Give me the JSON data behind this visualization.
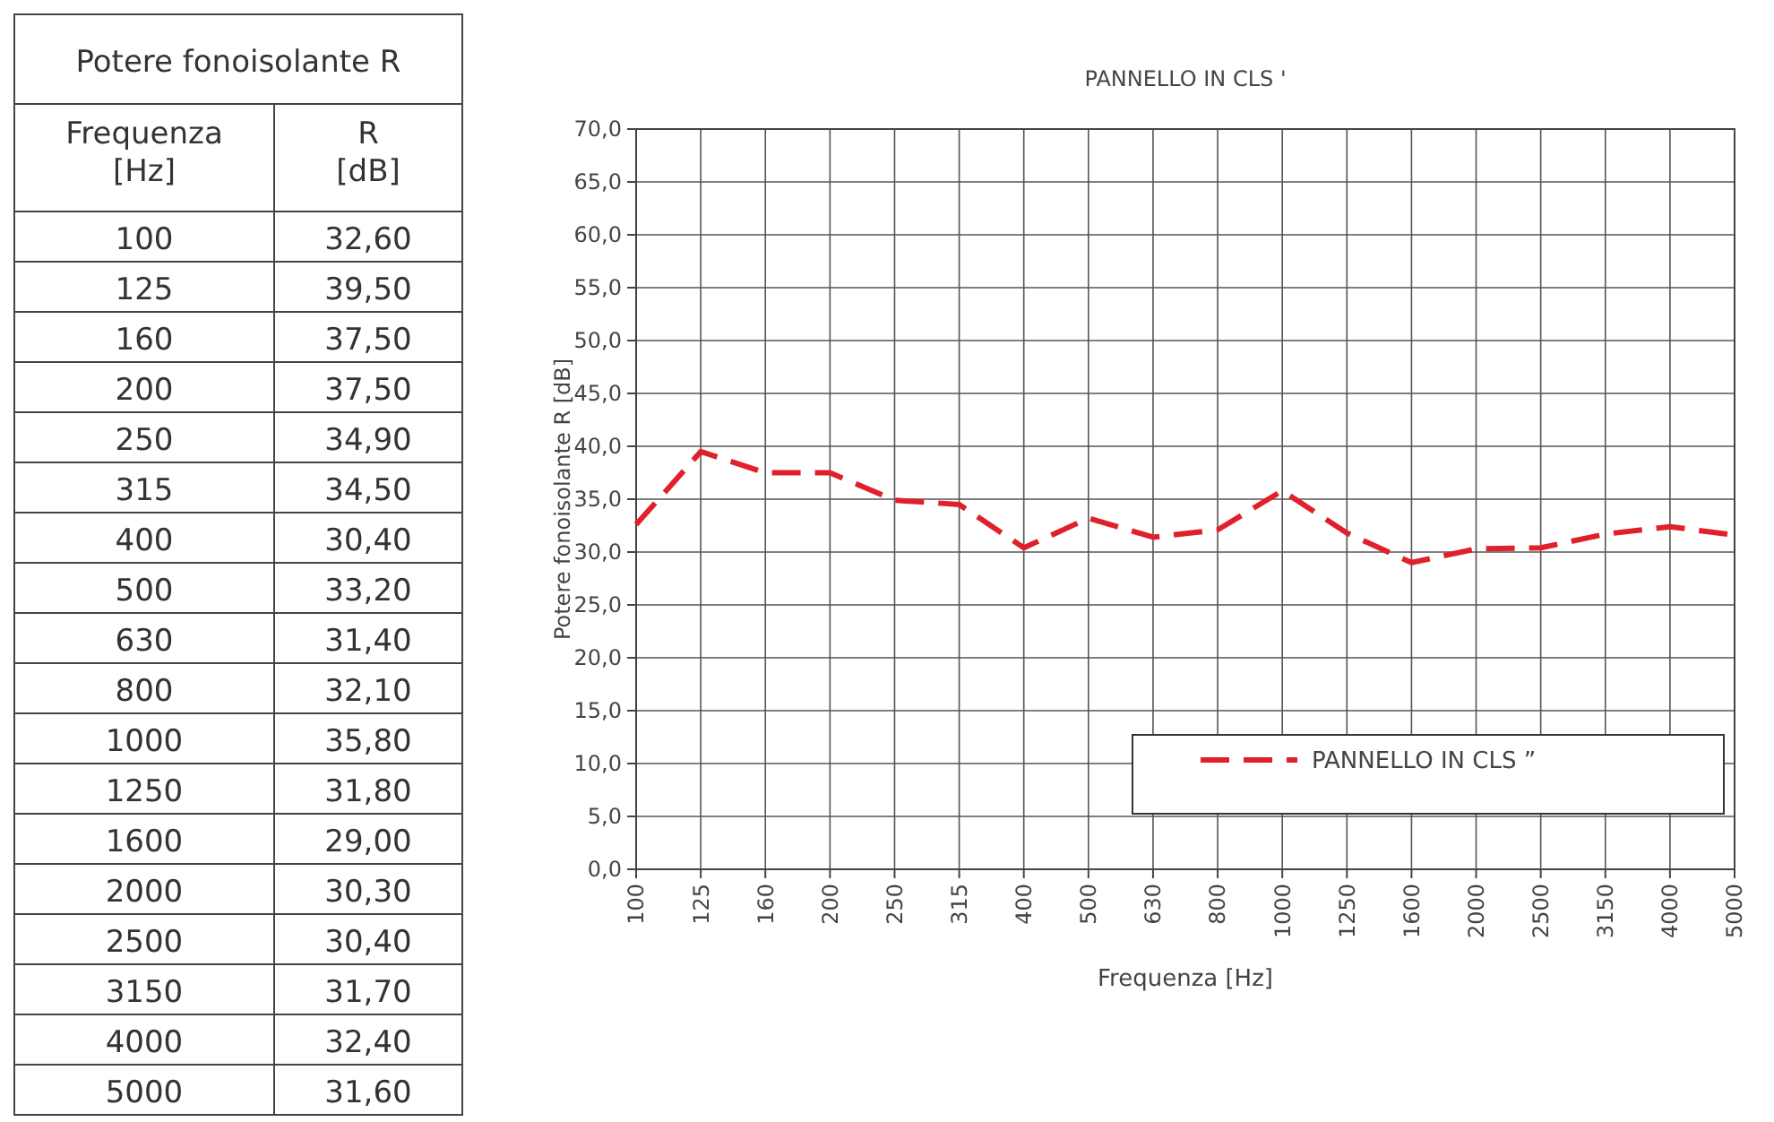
{
  "chart_data": [
    {
      "type": "other",
      "title": "Potere fonoisolante R",
      "annotations": [
        "Frequenza [Hz]",
        "R [dB]",
        "100",
        "32,60",
        "125",
        "39,50",
        "160",
        "37,50",
        "200",
        "37,50",
        "250",
        "34,90",
        "315",
        "34,50",
        "400",
        "30,40",
        "500",
        "33,20",
        "630",
        "31,40",
        "800",
        "32,10",
        "1000",
        "35,80",
        "1250",
        "31,80",
        "1600",
        "29,00",
        "2000",
        "30,30",
        "2500",
        "30,40",
        "3150",
        "31,70",
        "4000",
        "32,40",
        "5000",
        "31,60"
      ]
    },
    {
      "type": "line",
      "title": "PANNELLO IN CLS '",
      "xlabel": "Frequenza [Hz]",
      "ylabel": "Potere fonoisolante R [dB]",
      "categories": [
        "100",
        "125",
        "160",
        "200",
        "250",
        "315",
        "400",
        "500",
        "630",
        "800",
        "1000",
        "1250",
        "1600",
        "2000",
        "2500",
        "3150",
        "4000",
        "5000"
      ],
      "series": [
        {
          "name": "PANNELLO IN CLS ”",
          "color": "#e0202a",
          "values": [
            32.6,
            39.5,
            37.5,
            37.5,
            34.9,
            34.5,
            30.4,
            33.2,
            31.4,
            32.1,
            35.8,
            31.8,
            29.0,
            30.3,
            30.4,
            31.7,
            32.4,
            31.6
          ]
        }
      ],
      "ylim": [
        0,
        70
      ],
      "yticks": [
        {
          "value": 0,
          "label": "0,0"
        },
        {
          "value": 5,
          "label": "5,0"
        },
        {
          "value": 10,
          "label": "10,0"
        },
        {
          "value": 15,
          "label": "15,0"
        },
        {
          "value": 20,
          "label": "20,0"
        },
        {
          "value": 25,
          "label": "25,0"
        },
        {
          "value": 30,
          "label": "30,0"
        },
        {
          "value": 35,
          "label": "35,0"
        },
        {
          "value": 40,
          "label": "40,0"
        },
        {
          "value": 45,
          "label": "45,0"
        },
        {
          "value": 50,
          "label": "50,0"
        },
        {
          "value": 55,
          "label": "55,0"
        },
        {
          "value": 60,
          "label": "60,0"
        },
        {
          "value": 65,
          "label": "65,0"
        },
        {
          "value": 70,
          "label": "70,0"
        }
      ],
      "grid": true,
      "legend": "bottom right",
      "line_style": "dashed",
      "marker": "none"
    }
  ]
}
